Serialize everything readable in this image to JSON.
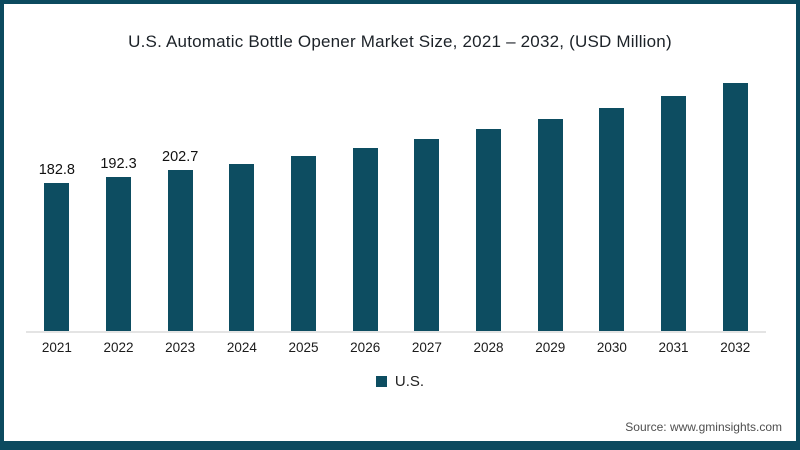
{
  "title": "U.S. Automatic Bottle Opener Market Size, 2021 – 2032, (USD Million)",
  "legend": {
    "label": "U.S."
  },
  "source": "Source: www.gminsights.com",
  "colors": {
    "bar": "#0d4d61",
    "frame_border": "#0c4a5f",
    "axis_line": "#e4e4e4",
    "title_text": "#1c2228",
    "source_text": "#4f4f4f"
  },
  "chart_data": {
    "type": "bar",
    "title": "U.S. Automatic Bottle Opener Market Size, 2021 – 2032, (USD Million)",
    "categories": [
      "2021",
      "2022",
      "2023",
      "2024",
      "2025",
      "2026",
      "2027",
      "2028",
      "2029",
      "2030",
      "2031",
      "2032"
    ],
    "series": [
      {
        "name": "U.S.",
        "values": [
          182.8,
          192.3,
          202.7,
          212.9,
          224.7,
          237.4,
          251.1,
          265.5,
          281.8,
          298.2,
          316.5,
          335.9
        ]
      }
    ],
    "data_labels": [
      "182.8",
      "192.3",
      "202.7",
      "",
      "",
      "",
      "",
      "",
      "",
      "",
      "",
      ""
    ],
    "xlabel": "",
    "ylabel": "",
    "ylim": [
      0,
      360
    ],
    "grid": false,
    "y_axis_visible": false,
    "legend_position": "bottom",
    "note": "Only the first three bars carry printed data labels; remaining values estimated from bar heights."
  }
}
